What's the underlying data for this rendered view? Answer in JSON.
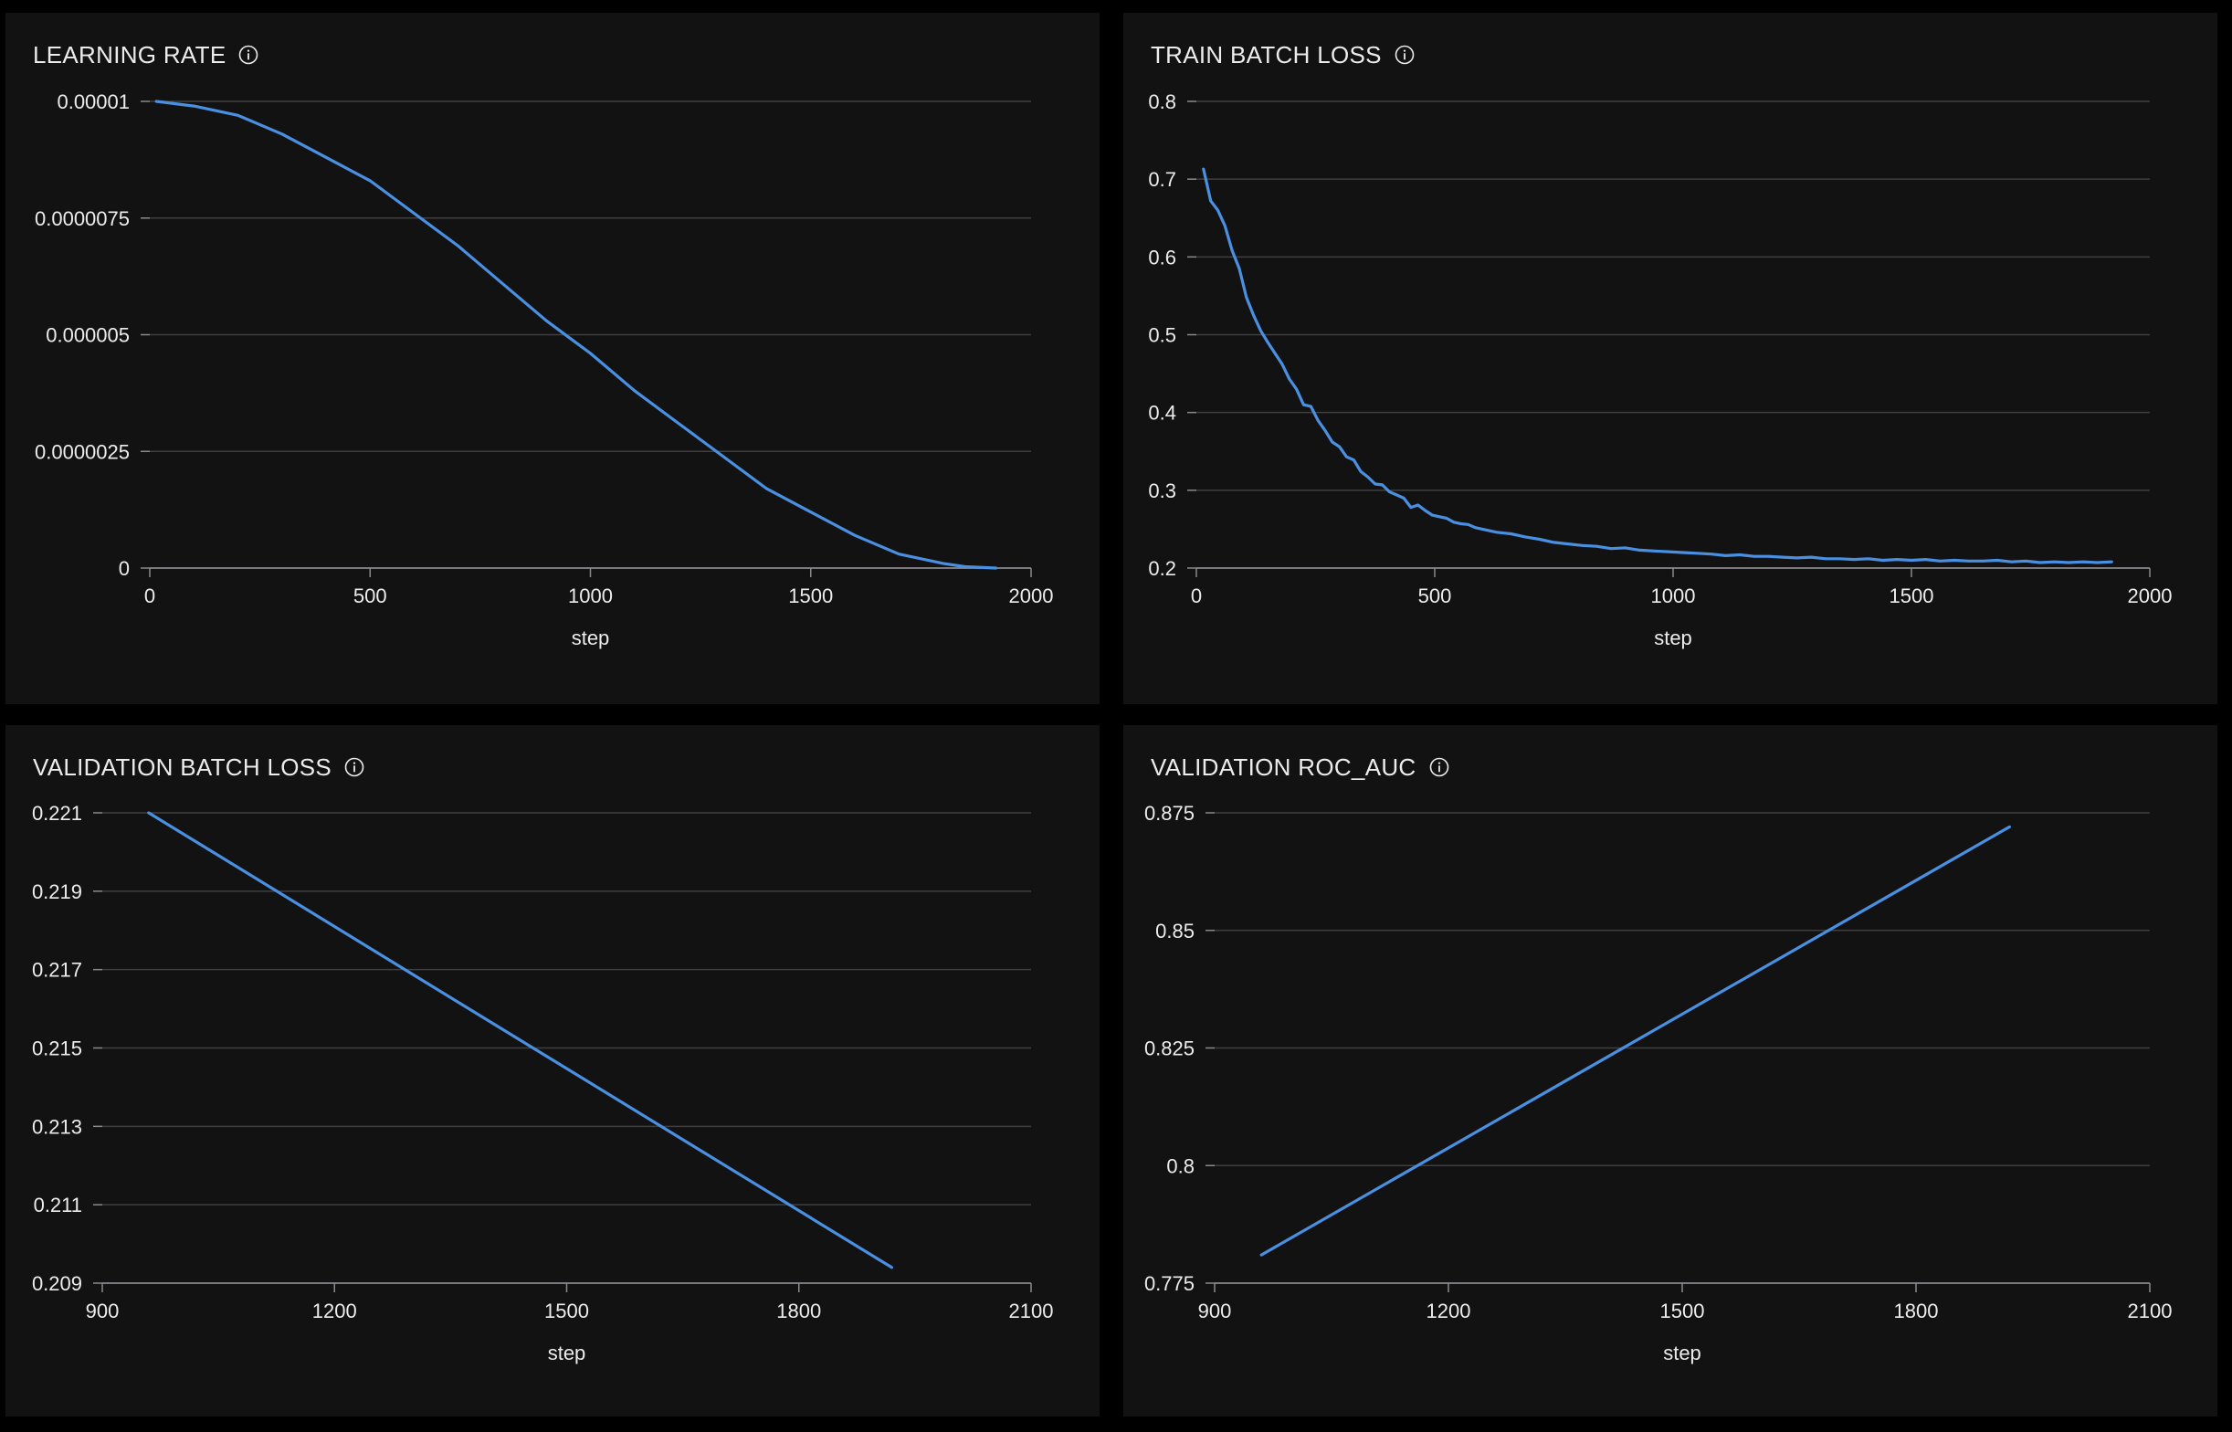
{
  "colors": {
    "background": "#000000",
    "panel": "#121213",
    "grid": "#3f3f42",
    "axis": "#8a8a8e",
    "text": "#ececec",
    "series": "#4a90e2"
  },
  "panels": [
    {
      "title": "LEARNING RATE",
      "info_icon": "info-icon"
    },
    {
      "title": "TRAIN BATCH LOSS",
      "info_icon": "info-icon"
    },
    {
      "title": "VALIDATION BATCH LOSS",
      "info_icon": "info-icon"
    },
    {
      "title": "VALIDATION ROC_AUC",
      "info_icon": "info-icon"
    }
  ],
  "chart_data": [
    {
      "type": "line",
      "title": "LEARNING RATE",
      "xlabel": "step",
      "ylabel": "",
      "xlim": [
        0,
        2000
      ],
      "ylim": [
        0,
        1e-05
      ],
      "xticks": [
        0,
        500,
        1000,
        1500,
        2000
      ],
      "xtick_labels": [
        "0",
        "500",
        "1000",
        "1500",
        "2000"
      ],
      "yticks": [
        0,
        2.5e-06,
        5e-06,
        7.5e-06,
        1e-05
      ],
      "ytick_labels": [
        "0",
        "0.0000025",
        "0.000005",
        "0.0000075",
        "0.00001"
      ],
      "grid": true,
      "series": [
        {
          "x": [
            15,
            100,
            200,
            300,
            400,
            500,
            600,
            700,
            800,
            900,
            1000,
            1100,
            1200,
            1300,
            1400,
            1500,
            1600,
            1700,
            1800,
            1850,
            1920
          ],
          "y": [
            1e-05,
            9.9e-06,
            9.7e-06,
            9.3e-06,
            8.8e-06,
            8.3e-06,
            7.6e-06,
            6.9e-06,
            6.1e-06,
            5.3e-06,
            4.6e-06,
            3.8e-06,
            3.1e-06,
            2.4e-06,
            1.7e-06,
            1.2e-06,
            7e-07,
            3e-07,
            1e-07,
            3e-08,
            0
          ]
        }
      ]
    },
    {
      "type": "line",
      "title": "TRAIN BATCH LOSS",
      "xlabel": "step",
      "ylabel": "",
      "xlim": [
        0,
        2000
      ],
      "ylim": [
        0.2,
        0.8
      ],
      "xticks": [
        0,
        500,
        1000,
        1500,
        2000
      ],
      "xtick_labels": [
        "0",
        "500",
        "1000",
        "1500",
        "2000"
      ],
      "yticks": [
        0.2,
        0.3,
        0.4,
        0.5,
        0.6,
        0.7,
        0.8
      ],
      "ytick_labels": [
        "0.2",
        "0.3",
        "0.4",
        "0.5",
        "0.6",
        "0.7",
        "0.8"
      ],
      "grid": true,
      "series": [
        {
          "x": [
            15,
            30,
            45,
            60,
            75,
            90,
            105,
            120,
            135,
            150,
            165,
            180,
            195,
            210,
            225,
            240,
            255,
            270,
            285,
            300,
            315,
            330,
            345,
            360,
            375,
            390,
            405,
            420,
            435,
            450,
            465,
            480,
            495,
            510,
            525,
            540,
            555,
            570,
            585,
            600,
            630,
            660,
            690,
            720,
            750,
            780,
            810,
            840,
            870,
            900,
            930,
            960,
            990,
            1020,
            1050,
            1080,
            1110,
            1140,
            1170,
            1200,
            1230,
            1260,
            1290,
            1320,
            1350,
            1380,
            1410,
            1440,
            1470,
            1500,
            1530,
            1560,
            1590,
            1620,
            1650,
            1680,
            1710,
            1740,
            1770,
            1800,
            1830,
            1860,
            1890,
            1920
          ],
          "y": [
            0.713,
            0.672,
            0.66,
            0.64,
            0.608,
            0.585,
            0.548,
            0.525,
            0.505,
            0.49,
            0.476,
            0.462,
            0.443,
            0.43,
            0.41,
            0.408,
            0.39,
            0.377,
            0.362,
            0.356,
            0.343,
            0.339,
            0.324,
            0.317,
            0.308,
            0.307,
            0.298,
            0.294,
            0.29,
            0.278,
            0.281,
            0.274,
            0.268,
            0.266,
            0.264,
            0.259,
            0.257,
            0.256,
            0.252,
            0.25,
            0.246,
            0.244,
            0.24,
            0.237,
            0.233,
            0.231,
            0.229,
            0.228,
            0.225,
            0.226,
            0.223,
            0.222,
            0.221,
            0.22,
            0.219,
            0.218,
            0.216,
            0.217,
            0.215,
            0.215,
            0.214,
            0.213,
            0.214,
            0.212,
            0.212,
            0.211,
            0.212,
            0.21,
            0.211,
            0.21,
            0.211,
            0.209,
            0.21,
            0.209,
            0.209,
            0.21,
            0.208,
            0.209,
            0.207,
            0.208,
            0.207,
            0.208,
            0.207,
            0.208
          ]
        }
      ]
    },
    {
      "type": "line",
      "title": "VALIDATION BATCH LOSS",
      "xlabel": "step",
      "ylabel": "",
      "xlim": [
        900,
        2100
      ],
      "ylim": [
        0.209,
        0.221
      ],
      "xticks": [
        900,
        1200,
        1500,
        1800,
        2100
      ],
      "xtick_labels": [
        "900",
        "1200",
        "1500",
        "1800",
        "2100"
      ],
      "yticks": [
        0.209,
        0.211,
        0.213,
        0.215,
        0.217,
        0.219,
        0.221
      ],
      "ytick_labels": [
        "0.209",
        "0.211",
        "0.213",
        "0.215",
        "0.217",
        "0.219",
        "0.221"
      ],
      "grid": true,
      "series": [
        {
          "x": [
            960,
            1920
          ],
          "y": [
            0.221,
            0.2094
          ]
        }
      ]
    },
    {
      "type": "line",
      "title": "VALIDATION ROC_AUC",
      "xlabel": "step",
      "ylabel": "",
      "xlim": [
        900,
        2100
      ],
      "ylim": [
        0.775,
        0.875
      ],
      "xticks": [
        900,
        1200,
        1500,
        1800,
        2100
      ],
      "xtick_labels": [
        "900",
        "1200",
        "1500",
        "1800",
        "2100"
      ],
      "yticks": [
        0.775,
        0.8,
        0.825,
        0.85,
        0.875
      ],
      "ytick_labels": [
        "0.775",
        "0.8",
        "0.825",
        "0.85",
        "0.875"
      ],
      "grid": true,
      "series": [
        {
          "x": [
            960,
            1920
          ],
          "y": [
            0.781,
            0.872
          ]
        }
      ]
    }
  ]
}
